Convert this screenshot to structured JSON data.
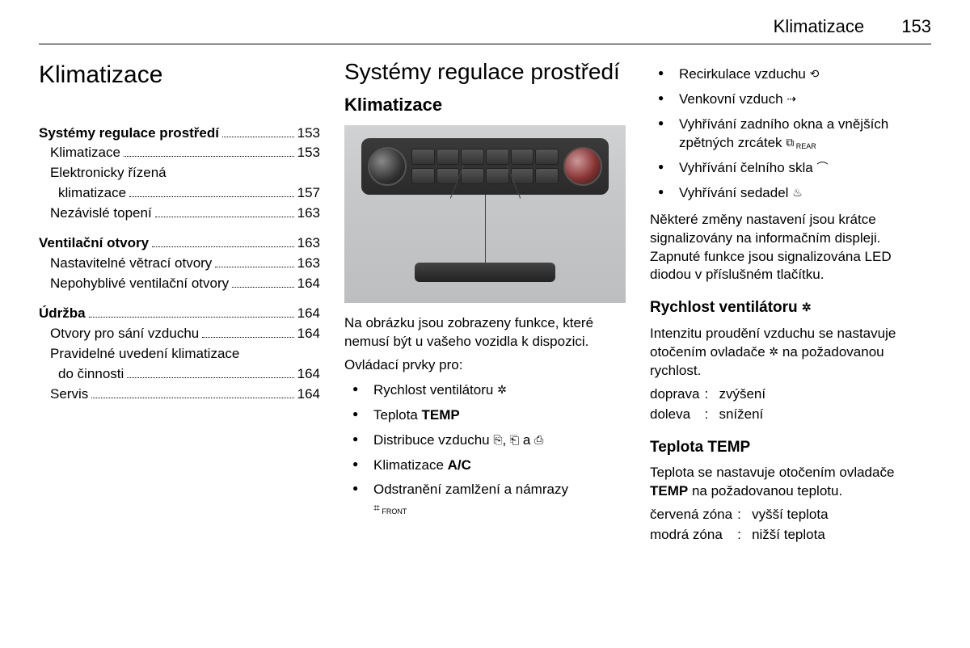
{
  "header": {
    "title": "Klimatizace",
    "page": "153"
  },
  "col1": {
    "h1": "Klimatizace",
    "toc": [
      {
        "head": {
          "label": "Systémy regulace prostředí",
          "page": "153"
        },
        "items": [
          {
            "label": "Klimatizace",
            "page": "153"
          },
          {
            "label": "Elektronicky řízená klimatizace",
            "page": "157",
            "wrap": true,
            "line1": "Elektronicky řízená",
            "line2": "klimatizace"
          },
          {
            "label": "Nezávislé topení",
            "page": "163"
          }
        ]
      },
      {
        "head": {
          "label": "Ventilační otvory",
          "page": "163"
        },
        "items": [
          {
            "label": "Nastavitelné větrací otvory",
            "page": "163"
          },
          {
            "label": "Nepohyblivé ventilační otvory",
            "page": "164"
          }
        ]
      },
      {
        "head": {
          "label": "Údržba",
          "page": "164"
        },
        "items": [
          {
            "label": "Otvory pro sání vzduchu",
            "page": "164"
          },
          {
            "label": "Pravidelné uvedení klimatizace do činnosti",
            "page": "164",
            "wrap": true,
            "line1": "Pravidelné uvedení klimatizace",
            "line2": "do činnosti"
          },
          {
            "label": "Servis",
            "page": "164"
          }
        ]
      }
    ]
  },
  "col2": {
    "h1": "Systémy regulace prostředí",
    "h2": "Klimatizace",
    "caption": "Na obrázku jsou zobrazeny funkce, které nemusí být u vašeho vozidla k dispozici.",
    "controls_label": "Ovládací prvky pro:",
    "items": [
      {
        "text": "Rychlost ventilátoru ",
        "icon": "✲"
      },
      {
        "pre": "Teplota ",
        "bold": "TEMP"
      },
      {
        "pre": "Distribuce vzduchu ",
        "icons3": [
          "⎘",
          "⎗",
          "⎙"
        ],
        "sep": ", ",
        "and": " a "
      },
      {
        "pre": "Klimatizace ",
        "bold": "A/C"
      },
      {
        "text": "Odstranění zamlžení a námrazy",
        "sub": "FRONT",
        "subicon": "⌗"
      }
    ]
  },
  "col3": {
    "top_items": [
      {
        "text": "Recirkulace vzduchu ",
        "icon": "⟲"
      },
      {
        "text": "Venkovní vzduch ",
        "icon": "⇢"
      },
      {
        "text": "Vyhřívání zadního okna a vnějších zpětných zrcátek ",
        "icon": "⧉",
        "sub": "REAR"
      },
      {
        "text": "Vyhřívání čelního skla ",
        "icon": "⌒"
      },
      {
        "text": "Vyhřívání sedadel ",
        "icon": "♨"
      }
    ],
    "note": "Některé změny nastavení jsou krátce signalizovány na informačním displeji. Zapnuté funkce jsou signalizována LED diodou v příslušném tlačítku.",
    "fan": {
      "heading": "Rychlost ventilátoru ",
      "heading_icon": "✲",
      "body_pre": "Intenzitu proudění vzduchu se nastavuje otočením ovladače ",
      "body_icon": "✲",
      "body_post": " na požadovanou rychlost.",
      "defs": [
        {
          "k": "doprava",
          "v": "zvýšení"
        },
        {
          "k": "doleva",
          "v": "snížení"
        }
      ]
    },
    "temp": {
      "heading": "Teplota TEMP",
      "body_pre": "Teplota se nastavuje otočením ovladače ",
      "body_bold": "TEMP",
      "body_post": " na požadovanou teplotu.",
      "defs": [
        {
          "k": "červená zóna",
          "v": "vyšší teplota"
        },
        {
          "k": "modrá zóna",
          "v": "nižší teplota"
        }
      ]
    }
  }
}
